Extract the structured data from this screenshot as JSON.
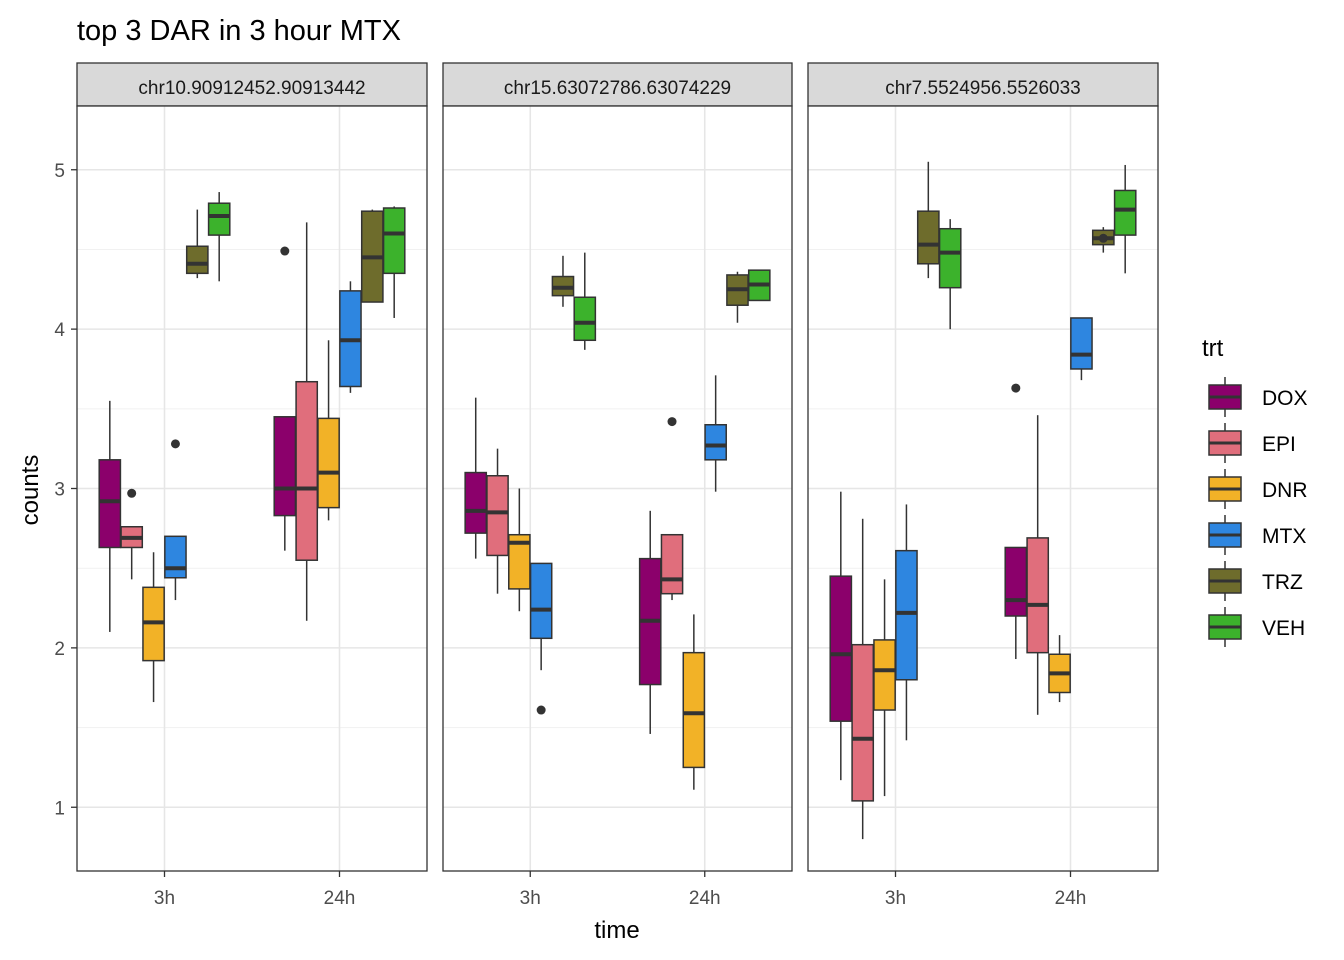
{
  "chart_data": {
    "type": "boxplot",
    "title": "top 3 DAR in 3 hour MTX",
    "xlabel": "time",
    "ylabel": "counts",
    "ylim": [
      0.6,
      5.4
    ],
    "yticks": [
      1,
      2,
      3,
      4,
      5
    ],
    "categories": [
      "3h",
      "24h"
    ],
    "grid": true,
    "legend": {
      "title": "trt",
      "position": "right",
      "items": [
        {
          "name": "DOX",
          "color": "#8B006B"
        },
        {
          "name": "EPI",
          "color": "#E06E7C"
        },
        {
          "name": "DNR",
          "color": "#F2B227"
        },
        {
          "name": "MTX",
          "color": "#2E86E0"
        },
        {
          "name": "TRZ",
          "color": "#6E6C2C"
        },
        {
          "name": "VEH",
          "color": "#3CB22C"
        }
      ]
    },
    "panels": [
      {
        "label": "chr10.90912452.90913442",
        "groups": [
          {
            "time": "3h",
            "trt": "DOX",
            "q1": 2.63,
            "median": 2.92,
            "q3": 3.18,
            "min": 2.1,
            "max": 3.55,
            "outliers": []
          },
          {
            "time": "3h",
            "trt": "EPI",
            "q1": 2.63,
            "median": 2.69,
            "q3": 2.76,
            "min": 2.43,
            "max": 2.76,
            "outliers": [
              2.97
            ]
          },
          {
            "time": "3h",
            "trt": "DNR",
            "q1": 1.92,
            "median": 2.16,
            "q3": 2.38,
            "min": 1.66,
            "max": 2.6,
            "outliers": []
          },
          {
            "time": "3h",
            "trt": "MTX",
            "q1": 2.44,
            "median": 2.5,
            "q3": 2.7,
            "min": 2.3,
            "max": 2.7,
            "outliers": [
              3.28
            ]
          },
          {
            "time": "3h",
            "trt": "TRZ",
            "q1": 4.35,
            "median": 4.41,
            "q3": 4.52,
            "min": 4.32,
            "max": 4.75,
            "outliers": []
          },
          {
            "time": "3h",
            "trt": "VEH",
            "q1": 4.59,
            "median": 4.71,
            "q3": 4.79,
            "min": 4.3,
            "max": 4.86,
            "outliers": []
          },
          {
            "time": "24h",
            "trt": "DOX",
            "q1": 2.83,
            "median": 3.0,
            "q3": 3.45,
            "min": 2.61,
            "max": 3.45,
            "outliers": [
              4.49
            ]
          },
          {
            "time": "24h",
            "trt": "EPI",
            "q1": 2.55,
            "median": 3.0,
            "q3": 3.67,
            "min": 2.17,
            "max": 4.67,
            "outliers": []
          },
          {
            "time": "24h",
            "trt": "DNR",
            "q1": 2.88,
            "median": 3.1,
            "q3": 3.44,
            "min": 2.8,
            "max": 3.93,
            "outliers": []
          },
          {
            "time": "24h",
            "trt": "MTX",
            "q1": 3.64,
            "median": 3.93,
            "q3": 4.24,
            "min": 3.6,
            "max": 4.3,
            "outliers": []
          },
          {
            "time": "24h",
            "trt": "TRZ",
            "q1": 4.17,
            "median": 4.45,
            "q3": 4.74,
            "min": 4.17,
            "max": 4.75,
            "outliers": []
          },
          {
            "time": "24h",
            "trt": "VEH",
            "q1": 4.35,
            "median": 4.6,
            "q3": 4.76,
            "min": 4.07,
            "max": 4.77,
            "outliers": []
          }
        ]
      },
      {
        "label": "chr15.63072786.63074229",
        "groups": [
          {
            "time": "3h",
            "trt": "DOX",
            "q1": 2.72,
            "median": 2.86,
            "q3": 3.1,
            "min": 2.56,
            "max": 3.57,
            "outliers": []
          },
          {
            "time": "3h",
            "trt": "EPI",
            "q1": 2.58,
            "median": 2.85,
            "q3": 3.08,
            "min": 2.34,
            "max": 3.25,
            "outliers": []
          },
          {
            "time": "3h",
            "trt": "DNR",
            "q1": 2.37,
            "median": 2.66,
            "q3": 2.71,
            "min": 2.23,
            "max": 3.0,
            "outliers": []
          },
          {
            "time": "3h",
            "trt": "MTX",
            "q1": 2.06,
            "median": 2.24,
            "q3": 2.53,
            "min": 1.86,
            "max": 2.53,
            "outliers": [
              1.61
            ]
          },
          {
            "time": "3h",
            "trt": "TRZ",
            "q1": 4.21,
            "median": 4.26,
            "q3": 4.33,
            "min": 4.14,
            "max": 4.46,
            "outliers": []
          },
          {
            "time": "3h",
            "trt": "VEH",
            "q1": 3.93,
            "median": 4.04,
            "q3": 4.2,
            "min": 3.87,
            "max": 4.48,
            "outliers": []
          },
          {
            "time": "24h",
            "trt": "DOX",
            "q1": 1.77,
            "median": 2.17,
            "q3": 2.56,
            "min": 1.46,
            "max": 2.86,
            "outliers": []
          },
          {
            "time": "24h",
            "trt": "EPI",
            "q1": 2.34,
            "median": 2.43,
            "q3": 2.71,
            "min": 2.3,
            "max": 2.71,
            "outliers": [
              3.42
            ]
          },
          {
            "time": "24h",
            "trt": "DNR",
            "q1": 1.25,
            "median": 1.59,
            "q3": 1.97,
            "min": 1.11,
            "max": 2.21,
            "outliers": []
          },
          {
            "time": "24h",
            "trt": "MTX",
            "q1": 3.18,
            "median": 3.27,
            "q3": 3.4,
            "min": 2.98,
            "max": 3.71,
            "outliers": []
          },
          {
            "time": "24h",
            "trt": "TRZ",
            "q1": 4.15,
            "median": 4.25,
            "q3": 4.34,
            "min": 4.04,
            "max": 4.36,
            "outliers": []
          },
          {
            "time": "24h",
            "trt": "VEH",
            "q1": 4.18,
            "median": 4.28,
            "q3": 4.37,
            "min": 4.18,
            "max": 4.37,
            "outliers": []
          }
        ]
      },
      {
        "label": "chr7.5524956.5526033",
        "groups": [
          {
            "time": "3h",
            "trt": "DOX",
            "q1": 1.54,
            "median": 1.96,
            "q3": 2.45,
            "min": 1.17,
            "max": 2.98,
            "outliers": []
          },
          {
            "time": "3h",
            "trt": "EPI",
            "q1": 1.04,
            "median": 1.43,
            "q3": 2.02,
            "min": 0.8,
            "max": 2.81,
            "outliers": []
          },
          {
            "time": "3h",
            "trt": "DNR",
            "q1": 1.61,
            "median": 1.86,
            "q3": 2.05,
            "min": 1.07,
            "max": 2.43,
            "outliers": []
          },
          {
            "time": "3h",
            "trt": "MTX",
            "q1": 1.8,
            "median": 2.22,
            "q3": 2.61,
            "min": 1.42,
            "max": 2.9,
            "outliers": []
          },
          {
            "time": "3h",
            "trt": "TRZ",
            "q1": 4.41,
            "median": 4.53,
            "q3": 4.74,
            "min": 4.32,
            "max": 5.05,
            "outliers": []
          },
          {
            "time": "3h",
            "trt": "VEH",
            "q1": 4.26,
            "median": 4.48,
            "q3": 4.63,
            "min": 4.0,
            "max": 4.69,
            "outliers": []
          },
          {
            "time": "24h",
            "trt": "DOX",
            "q1": 2.2,
            "median": 2.3,
            "q3": 2.63,
            "min": 1.93,
            "max": 2.63,
            "outliers": [
              3.63
            ]
          },
          {
            "time": "24h",
            "trt": "EPI",
            "q1": 1.97,
            "median": 2.27,
            "q3": 2.69,
            "min": 1.58,
            "max": 3.46,
            "outliers": []
          },
          {
            "time": "24h",
            "trt": "DNR",
            "q1": 1.72,
            "median": 1.84,
            "q3": 1.96,
            "min": 1.66,
            "max": 2.08,
            "outliers": []
          },
          {
            "time": "24h",
            "trt": "MTX",
            "q1": 3.75,
            "median": 3.84,
            "q3": 4.07,
            "min": 3.68,
            "max": 4.07,
            "outliers": []
          },
          {
            "time": "24h",
            "trt": "TRZ",
            "q1": 4.53,
            "median": 4.57,
            "q3": 4.62,
            "min": 4.48,
            "max": 4.64,
            "outliers": [
              4.57
            ]
          },
          {
            "time": "24h",
            "trt": "VEH",
            "q1": 4.59,
            "median": 4.75,
            "q3": 4.87,
            "min": 4.35,
            "max": 5.03,
            "outliers": []
          }
        ]
      }
    ]
  }
}
